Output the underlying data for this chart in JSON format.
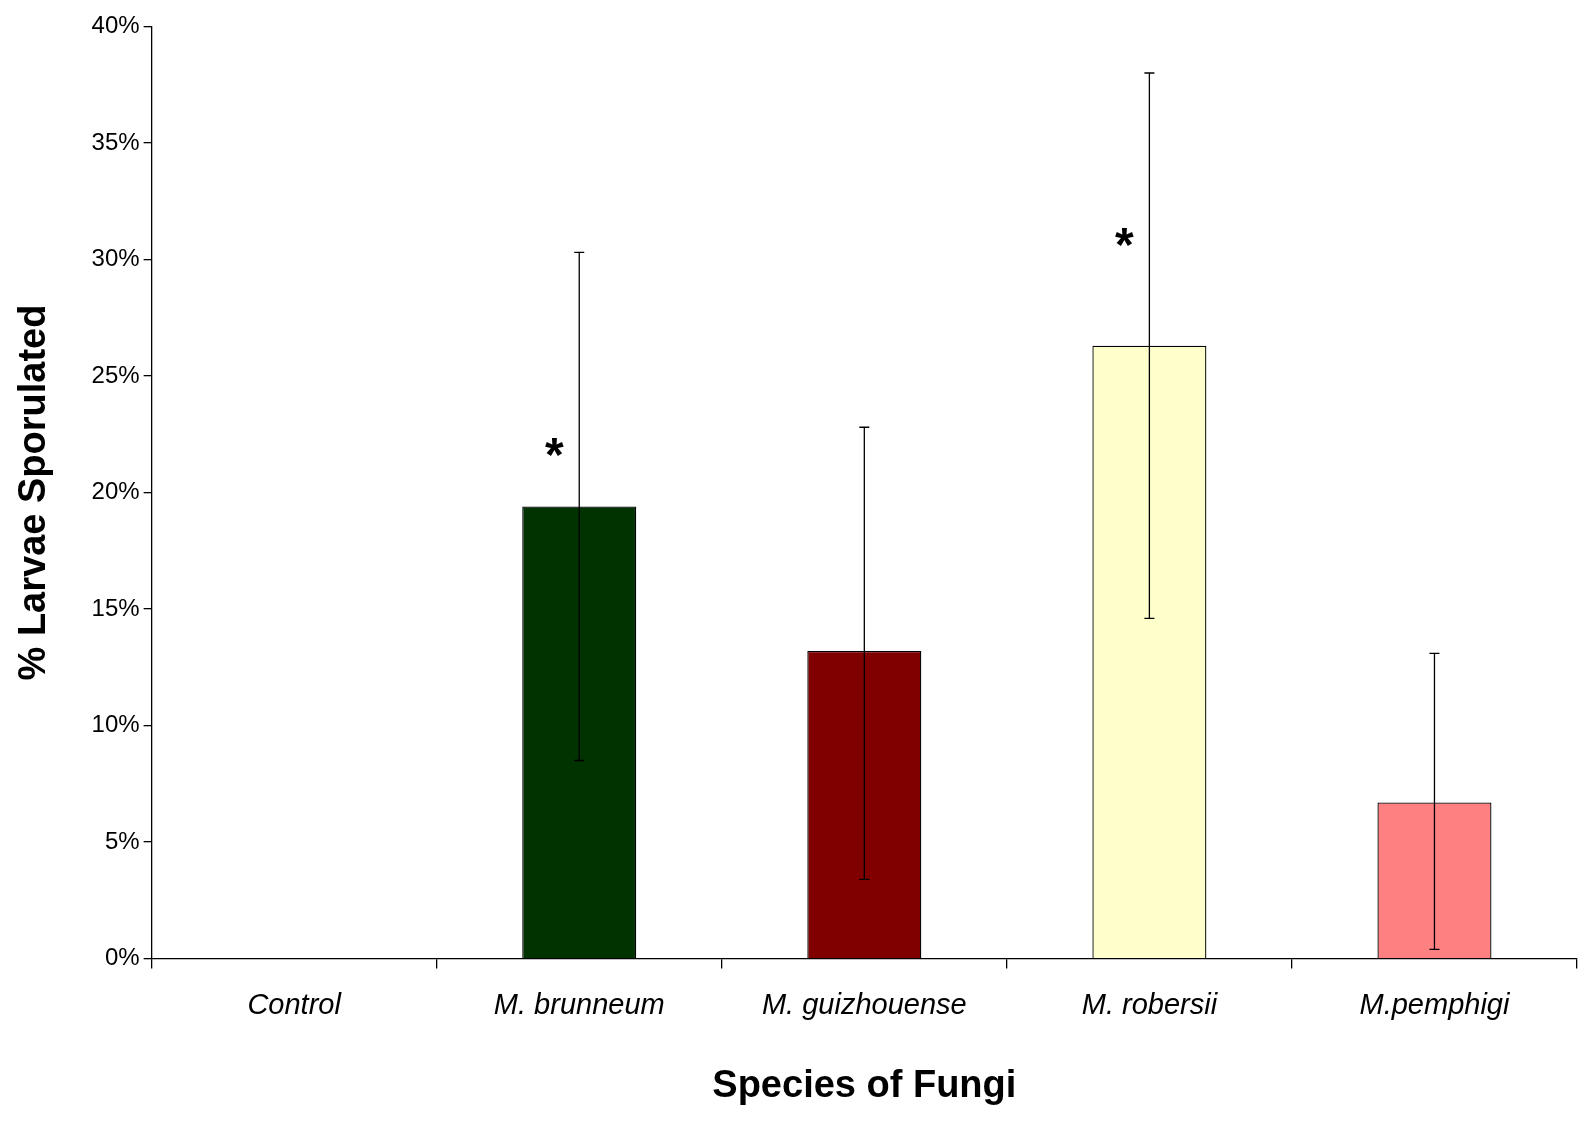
{
  "chart_data": {
    "type": "bar",
    "xlabel": "Species of Fungi",
    "ylabel": "% Larvae Sporulated",
    "categories": [
      "Control",
      "M. brunneum",
      "M. guizhouense",
      "M. robersii",
      "M.pemphigi"
    ],
    "values": [
      0,
      19.4,
      13.2,
      26.3,
      6.7
    ],
    "colors": [
      "#ffffff",
      "#003300",
      "#800000",
      "#ffffcc",
      "#ff8080"
    ],
    "errors": [
      null,
      [
        8.5,
        30.3
      ],
      [
        3.4,
        22.8
      ],
      [
        14.6,
        38.0
      ],
      [
        0.4,
        13.1
      ]
    ],
    "ylim": [
      0,
      40
    ],
    "yticks": [
      {
        "value": 0,
        "label": "0%"
      },
      {
        "value": 5,
        "label": "5%"
      },
      {
        "value": 10,
        "label": "10%"
      },
      {
        "value": 15,
        "label": "15%"
      },
      {
        "value": 20,
        "label": "20%"
      },
      {
        "value": 25,
        "label": "25%"
      },
      {
        "value": 30,
        "label": "30%"
      },
      {
        "value": 35,
        "label": "35%"
      },
      {
        "value": 40,
        "label": "40%"
      }
    ],
    "annotations": [
      {
        "text": "*",
        "x": "M. brunneum",
        "y": 22
      },
      {
        "text": "*",
        "x": "M. robersii",
        "y": 31
      }
    ],
    "legend": false
  }
}
